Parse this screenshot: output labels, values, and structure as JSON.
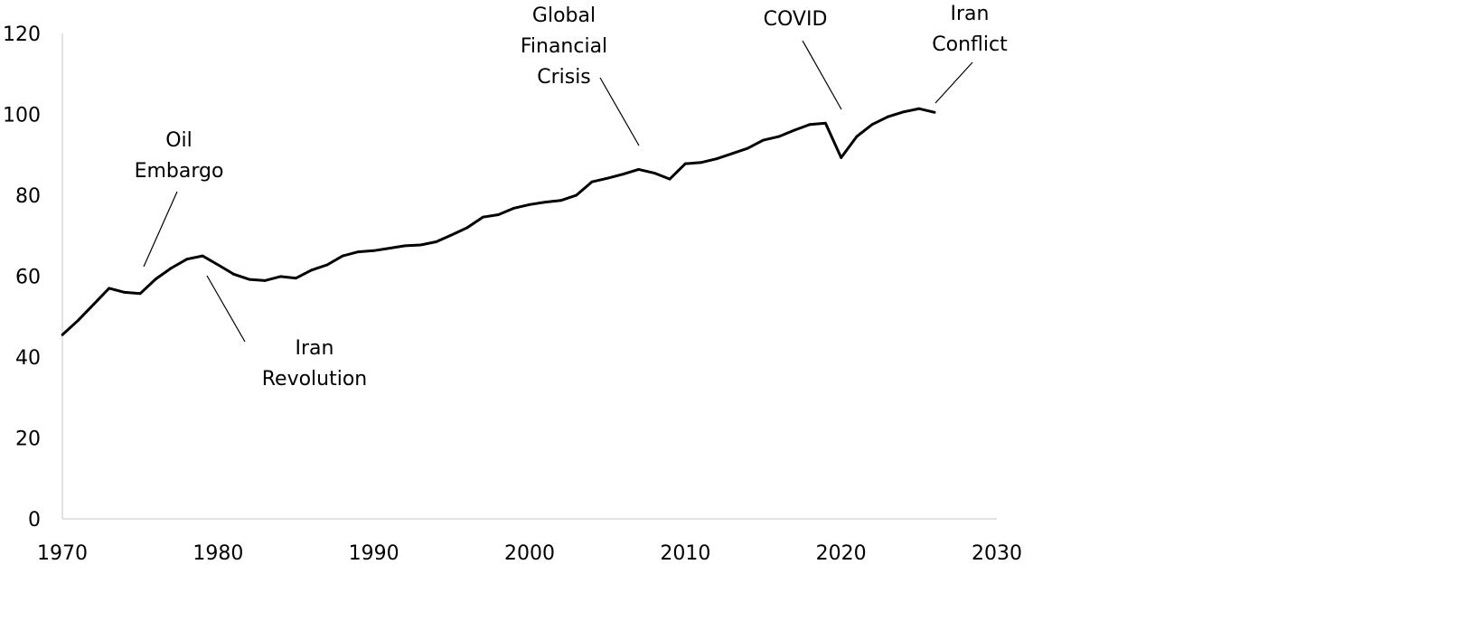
{
  "chart_data": {
    "type": "line",
    "title": "",
    "xlabel": "",
    "ylabel": "",
    "xlim": [
      1970,
      2030
    ],
    "ylim": [
      0,
      120
    ],
    "xticks": [
      1970,
      1980,
      1990,
      2000,
      2010,
      2020,
      2030
    ],
    "yticks": [
      0,
      20,
      40,
      60,
      80,
      100,
      120
    ],
    "grid": false,
    "legend": "none",
    "line_color": "#000000",
    "series": [
      {
        "x": [
          1970,
          1971,
          1972,
          1973,
          1974,
          1975,
          1976,
          1977,
          1978,
          1979,
          1980,
          1981,
          1982,
          1983,
          1984,
          1985,
          1986,
          1987,
          1988,
          1989,
          1990,
          1991,
          1992,
          1993,
          1994,
          1995,
          1996,
          1997,
          1998,
          1999,
          2000,
          2001,
          2002,
          2003,
          2004,
          2005,
          2006,
          2007,
          2008,
          2009,
          2010,
          2011,
          2012,
          2013,
          2014,
          2015,
          2016,
          2017,
          2018,
          2019,
          2020,
          2021,
          2022,
          2023,
          2024,
          2025,
          2026
        ],
        "values": [
          45.5,
          49.0,
          53.0,
          57.0,
          56.0,
          55.7,
          59.3,
          62.0,
          64.2,
          65.0,
          62.8,
          60.5,
          59.2,
          58.9,
          59.9,
          59.5,
          61.5,
          62.8,
          65.0,
          66.0,
          66.3,
          66.9,
          67.5,
          67.7,
          68.5,
          70.2,
          72.0,
          74.6,
          75.2,
          76.8,
          77.7,
          78.3,
          78.7,
          80.0,
          83.3,
          84.2,
          85.2,
          86.4,
          85.5,
          84.0,
          87.8,
          88.1,
          89.0,
          90.3,
          91.6,
          93.6,
          94.5,
          96.1,
          97.5,
          97.8,
          89.3,
          94.5,
          97.5,
          99.4,
          100.6,
          101.4,
          100.5
        ]
      }
    ],
    "annotations": [
      {
        "lines": [
          "Oil",
          "Embargo"
        ],
        "year": 1975,
        "value": 62
      },
      {
        "lines": [
          "Iran",
          "Revolution"
        ],
        "year": 1979.5,
        "value": 60.5
      },
      {
        "lines": [
          "Global",
          "Financial",
          "Crisis"
        ],
        "year": 2008,
        "value": 92
      },
      {
        "lines": [
          "COVID"
        ],
        "year": 2020,
        "value": 100
      },
      {
        "lines": [
          "Iran",
          "Conflict"
        ],
        "year": 2026,
        "value": 102
      }
    ]
  }
}
